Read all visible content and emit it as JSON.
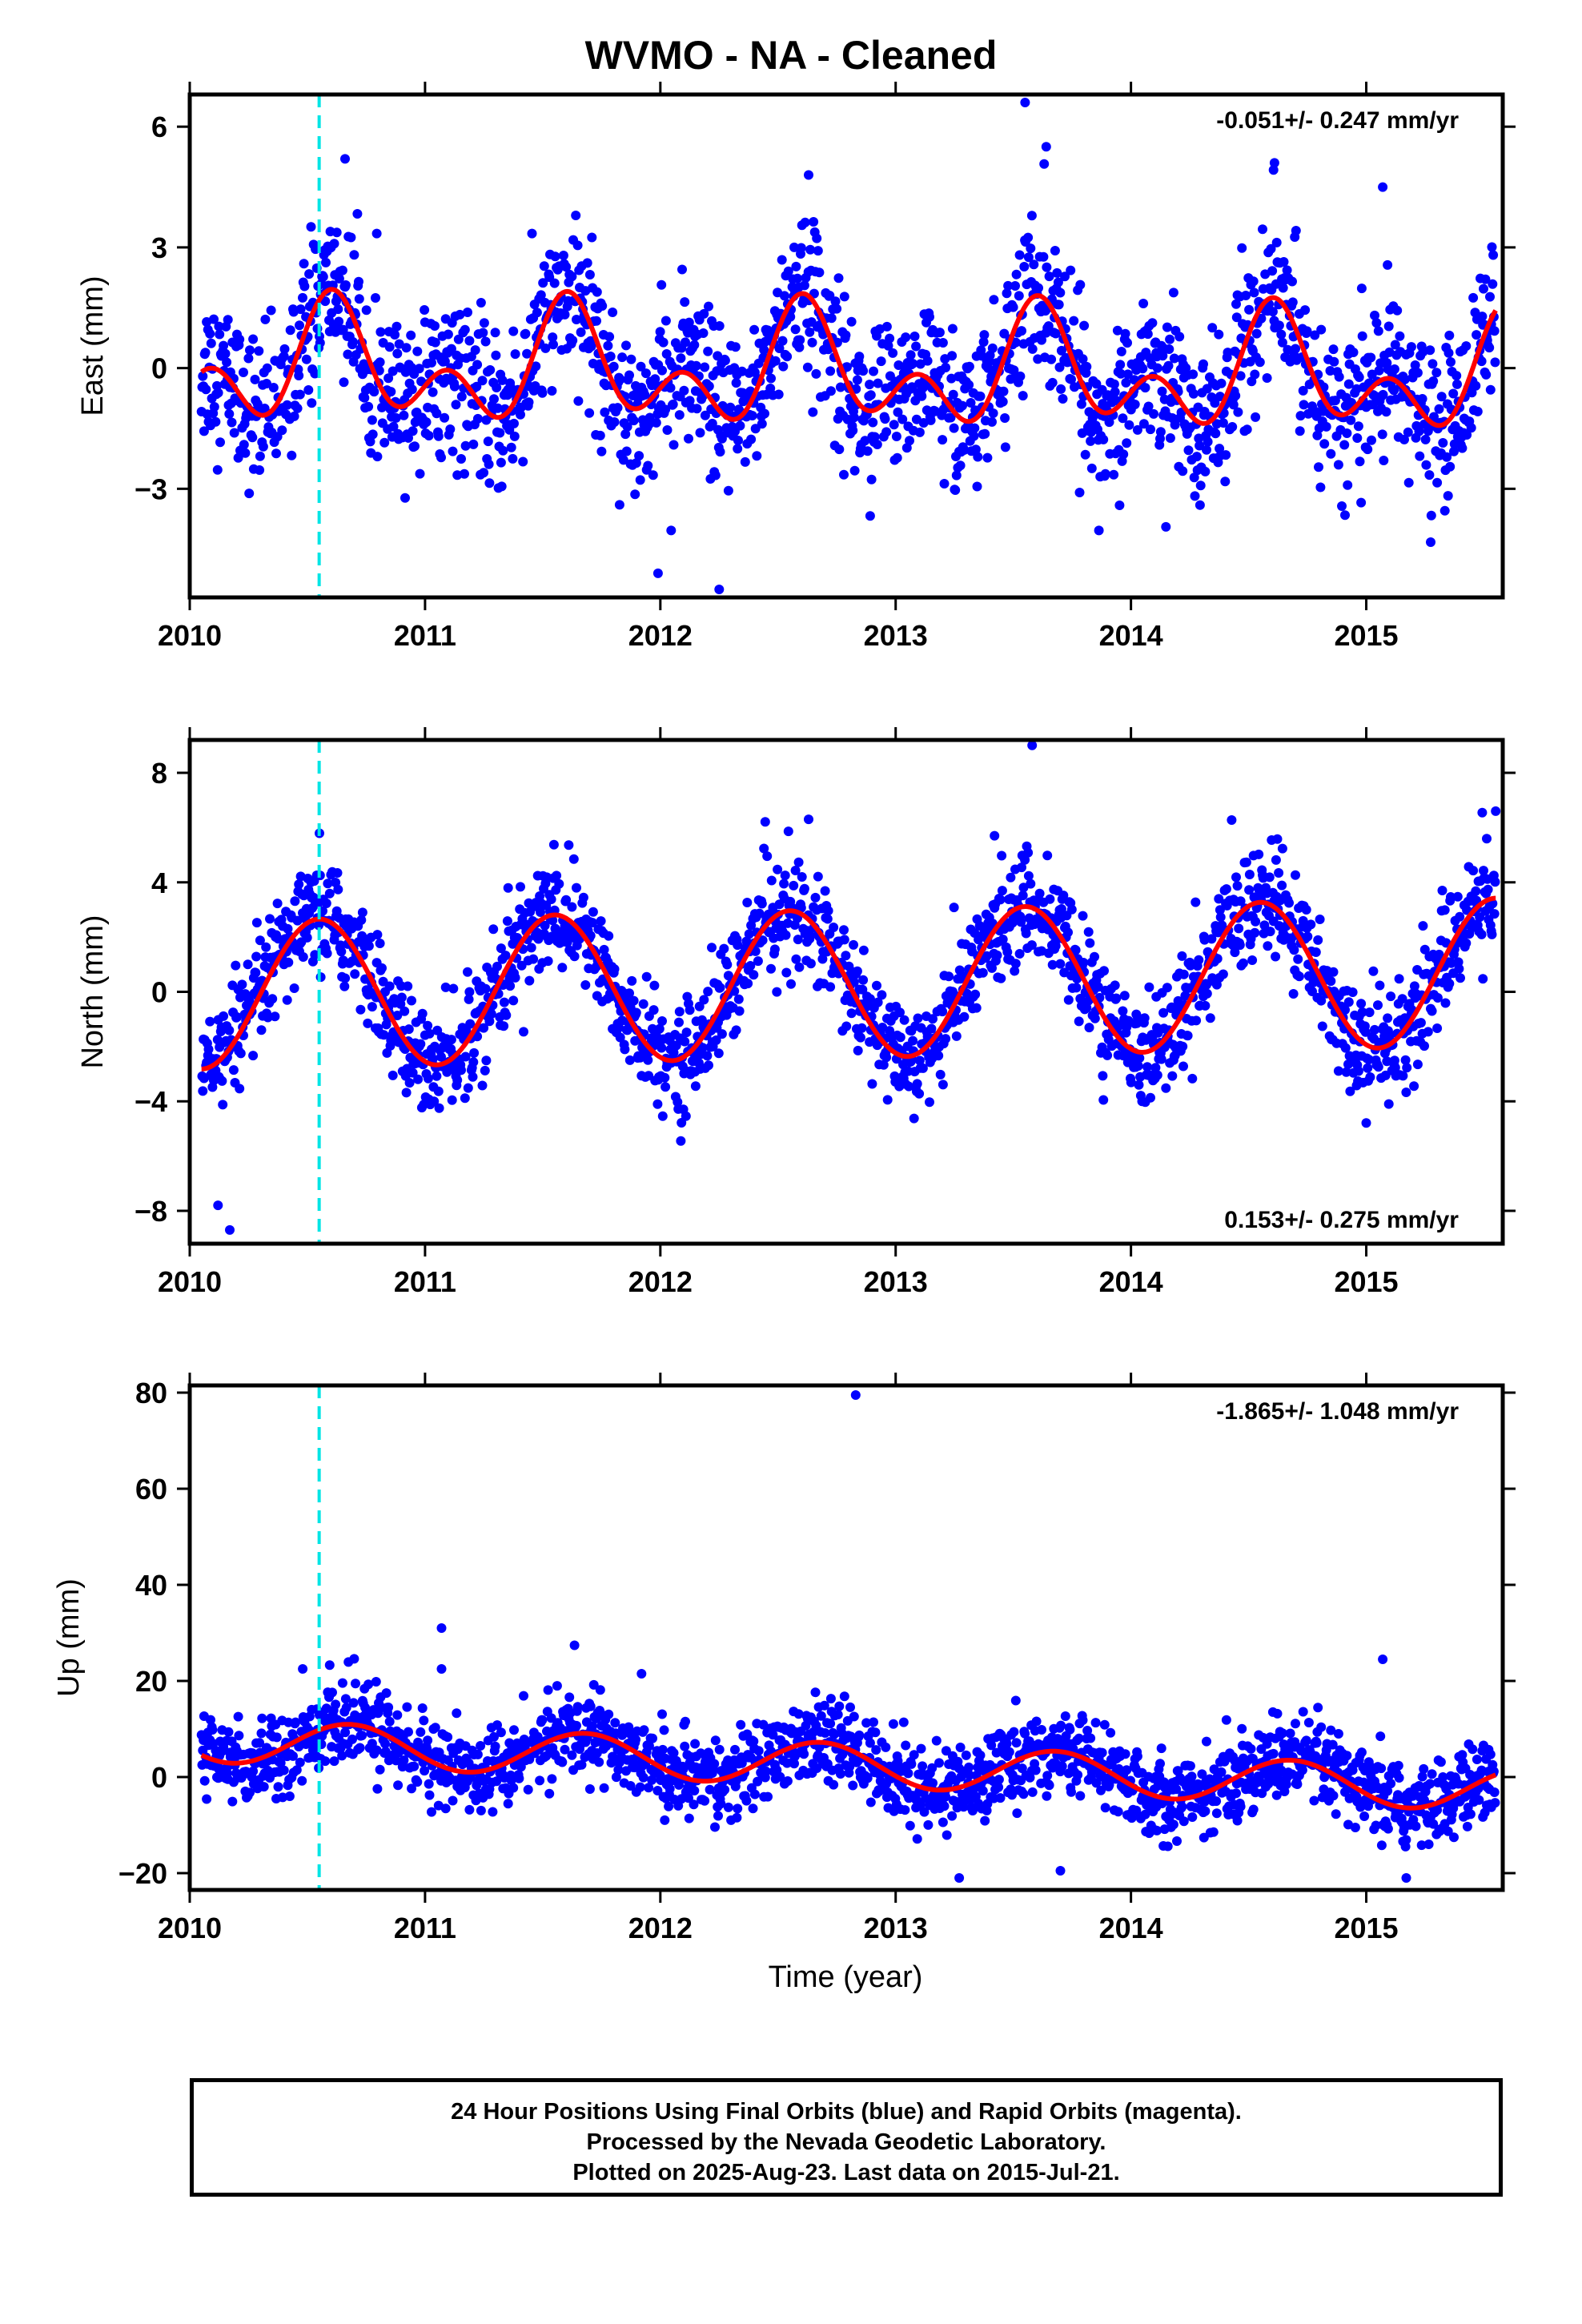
{
  "title": "WVMO  - NA - Cleaned",
  "x_axis_title": "Time (year)",
  "footer": {
    "line1": "24 Hour Positions Using Final Orbits (blue) and Rapid Orbits (magenta).",
    "line2": "Processed by the Nevada Geodetic Laboratory.",
    "line3": "Plotted on 2025-Aug-23. Last data on 2015-Jul-21."
  },
  "colors": {
    "points": "#0000ff",
    "fit": "#ff0000",
    "event_line": "#00e5e5"
  },
  "chart_data": [
    {
      "type": "scatter",
      "component": "east",
      "ylabel": "East (mm)",
      "xlim": [
        2010.0,
        2015.58
      ],
      "ylim": [
        -5.7,
        6.8
      ],
      "xticks": [
        2010,
        2011,
        2012,
        2013,
        2014,
        2015
      ],
      "yticks": [
        -3,
        0,
        3,
        6
      ],
      "rate_label": "-0.051+/- 0.247 mm/yr",
      "event_line_x": 2010.55,
      "fit": {
        "mean": -0.1,
        "trend": -0.051,
        "annual_amp": 1.0,
        "annual_peak": 2010.62,
        "semi_amp": 0.95,
        "semi_peak": 2010.6
      },
      "series": [
        {
          "name": "Final Orbits",
          "x_start": 2010.05,
          "x_end": 2015.55,
          "noise": 0.95
        }
      ],
      "outliers": [
        [
          2013.55,
          6.6
        ],
        [
          2012.25,
          -5.5
        ],
        [
          2011.99,
          -5.1
        ],
        [
          2015.07,
          4.5
        ],
        [
          2013.64,
          5.5
        ],
        [
          2012.63,
          4.8
        ],
        [
          2010.66,
          5.2
        ],
        [
          2014.61,
          5.1
        ]
      ]
    },
    {
      "type": "scatter",
      "component": "north",
      "ylabel": "North (mm)",
      "xlim": [
        2010.0,
        2015.58
      ],
      "ylim": [
        -9.2,
        9.2
      ],
      "xticks": [
        2010,
        2011,
        2012,
        2013,
        2014,
        2015
      ],
      "yticks": [
        -8,
        -4,
        0,
        4,
        8
      ],
      "rate_label": "0.153+/- 0.275 mm/yr",
      "event_line_x": 2010.55,
      "fit": {
        "mean": 0.3,
        "trend": 0.153,
        "annual_amp": 2.7,
        "annual_peak": 2010.55,
        "semi_amp": 0.0,
        "semi_peak": 2010.3
      },
      "series": [
        {
          "name": "Final Orbits",
          "x_start": 2010.05,
          "x_end": 2015.55,
          "noise": 1.0
        }
      ],
      "outliers": [
        [
          2010.12,
          -7.8
        ],
        [
          2010.17,
          -8.7
        ],
        [
          2013.58,
          9.0
        ],
        [
          2013.42,
          5.7
        ],
        [
          2012.63,
          6.3
        ],
        [
          2015.55,
          6.6
        ]
      ]
    },
    {
      "type": "scatter",
      "component": "up",
      "ylabel": "Up (mm)",
      "xlim": [
        2010.0,
        2015.58
      ],
      "ylim": [
        -23.5,
        81.5
      ],
      "xticks": [
        2010,
        2011,
        2012,
        2013,
        2014,
        2015
      ],
      "yticks": [
        -20,
        0,
        20,
        40,
        60,
        80
      ],
      "rate_label": "-1.865+/- 1.048 mm/yr",
      "event_line_x": 2010.55,
      "fit": {
        "mean": 2.5,
        "trend": -1.865,
        "annual_amp": 4.5,
        "annual_peak": 2010.68,
        "semi_amp": 0.0,
        "semi_peak": 2010.3
      },
      "series": [
        {
          "name": "Final Orbits",
          "x_start": 2010.05,
          "x_end": 2015.55,
          "noise": 4.3
        }
      ],
      "outliers": [
        [
          2012.83,
          79.5
        ],
        [
          2011.07,
          31.0
        ],
        [
          2011.07,
          22.5
        ],
        [
          2010.48,
          22.5
        ],
        [
          2015.07,
          24.5
        ],
        [
          2011.92,
          21.5
        ],
        [
          2013.27,
          -21.0
        ],
        [
          2015.17,
          -21.0
        ],
        [
          2013.7,
          -19.5
        ]
      ]
    }
  ]
}
